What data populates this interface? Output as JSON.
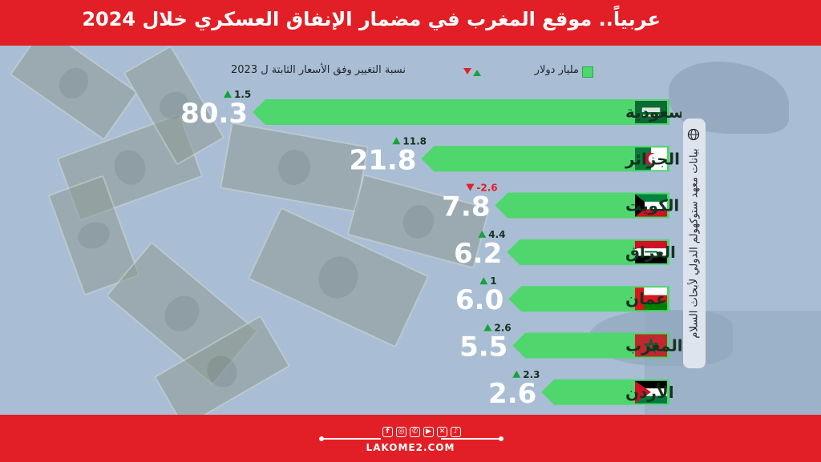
{
  "header": {
    "title": "عربياً.. موقع المغرب في مضمار الإنفاق العسكري خلال 2024"
  },
  "legend": {
    "value_label": "مليار دولار",
    "change_label": "نسبة التغيير وفق الأسعار الثابتة ل 2023"
  },
  "colors": {
    "bar": "#4fd66c",
    "value_text": "#ffffff",
    "up": "#13a33e",
    "down": "#e21f26",
    "brand": "#e21f26"
  },
  "source_note": "بيانات معهد ستوكهولم الدولي لأبحاث السلام",
  "footer": {
    "site": "LAKOME2.COM",
    "social_icons": [
      "facebook-icon",
      "instagram-icon",
      "whatsapp-icon",
      "youtube-icon",
      "x-icon",
      "tiktok-icon"
    ]
  },
  "chart_data": {
    "type": "bar",
    "orientation": "horizontal",
    "unit": "مليار دولار",
    "categories": [
      "السعودية",
      "الجزائر",
      "الكويت",
      "العراق",
      "عمان",
      "المغرب",
      "الأردن"
    ],
    "values": [
      80.3,
      21.8,
      7.8,
      6.2,
      6.0,
      5.5,
      2.6
    ],
    "value_labels": [
      "80.3",
      "21.8",
      "7.8",
      "6.2",
      "6.0",
      "5.5",
      "2.6"
    ],
    "change": [
      "1.5",
      "11.8",
      "-2.6",
      "4.4",
      "1",
      "2.6",
      "2.3"
    ],
    "change_direction": [
      "up",
      "up",
      "down",
      "up",
      "up",
      "up",
      "up"
    ],
    "flags": [
      "saudi-arabia-flag",
      "algeria-flag",
      "kuwait-flag",
      "iraq-flag",
      "oman-flag",
      "morocco-flag",
      "jordan-flag"
    ],
    "grid": false,
    "legend_position": "top"
  }
}
